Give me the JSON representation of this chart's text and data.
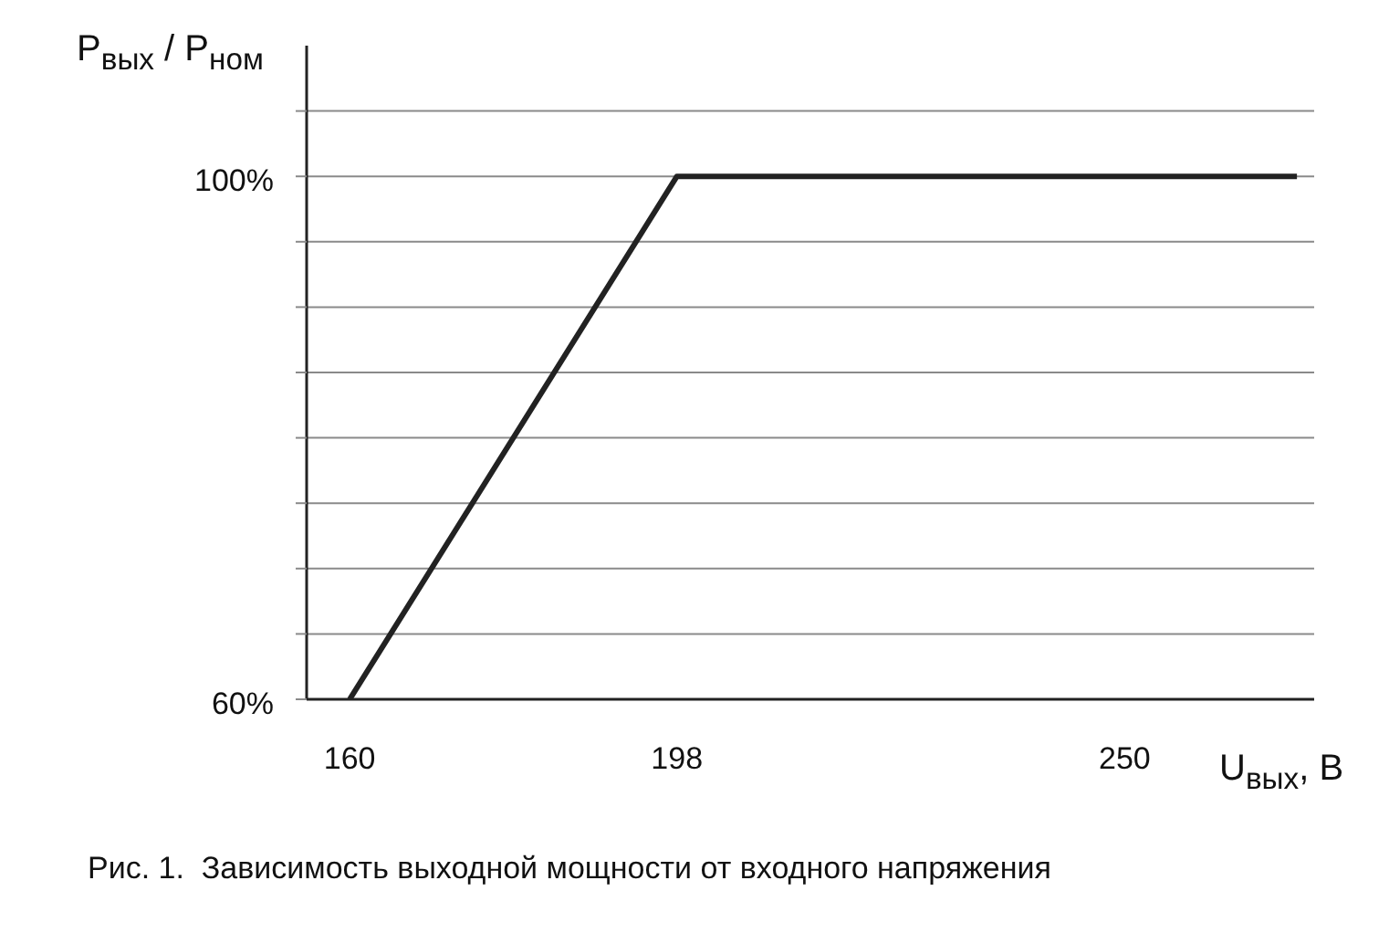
{
  "chart_data": {
    "type": "line",
    "ylabel": "P$_{вых}$ / P$_{ном}$",
    "xlabel": "U$_{вых}$, В",
    "annotations": [
      "Рис. 1.  Зависимость выходной мощности от входного напряжения"
    ],
    "series": [
      {
        "color": "#222222",
        "x": [
          160,
          198,
          270
        ],
        "values": [
          60,
          100,
          100
        ]
      }
    ],
    "xlim": [
      155,
      272
    ],
    "xticks": [
      160,
      198,
      250
    ],
    "ylim": [
      60,
      110
    ],
    "yticks": [
      {
        "value": 60,
        "label": "60%"
      },
      {
        "value": 65,
        "label": null
      },
      {
        "value": 70,
        "label": null
      },
      {
        "value": 75,
        "label": null
      },
      {
        "value": 80,
        "label": null
      },
      {
        "value": 85,
        "label": null
      },
      {
        "value": 90,
        "label": null
      },
      {
        "value": 95,
        "label": null
      },
      {
        "value": 100,
        "label": "100%"
      },
      {
        "value": 105,
        "label": null
      }
    ],
    "grid": "y",
    "legend": false,
    "marker": "none",
    "line_style": "solid"
  }
}
